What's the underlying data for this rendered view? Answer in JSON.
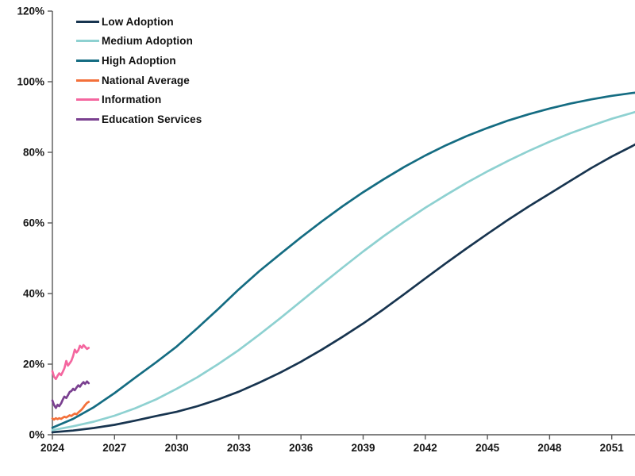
{
  "chart_data": {
    "type": "line",
    "title": "",
    "xlabel": "",
    "ylabel": "",
    "grid": false,
    "legend_position": "top-left",
    "xlim": [
      2024,
      2052.3
    ],
    "ylim": [
      0,
      120
    ],
    "axis_color": "#595959",
    "tick_text_color": "#161616",
    "y_ticks": [
      {
        "value": 0,
        "label": "0%"
      },
      {
        "value": 20,
        "label": "20%"
      },
      {
        "value": 40,
        "label": "40%"
      },
      {
        "value": 60,
        "label": "60%"
      },
      {
        "value": 80,
        "label": "80%"
      },
      {
        "value": 100,
        "label": "100%"
      },
      {
        "value": 120,
        "label": "120%"
      }
    ],
    "x_ticks": [
      {
        "value": 2024,
        "label": "2024"
      },
      {
        "value": 2027,
        "label": "2027"
      },
      {
        "value": 2030,
        "label": "2030"
      },
      {
        "value": 2033,
        "label": "2033"
      },
      {
        "value": 2036,
        "label": "2036"
      },
      {
        "value": 2039,
        "label": "2039"
      },
      {
        "value": 2042,
        "label": "2042"
      },
      {
        "value": 2045,
        "label": "2045"
      },
      {
        "value": 2048,
        "label": "2048"
      },
      {
        "value": 2051,
        "label": "2051"
      }
    ],
    "series": [
      {
        "name": "Low Adoption",
        "color": "#17344f",
        "x": [
          2024,
          2025,
          2026,
          2027,
          2028,
          2029,
          2030,
          2031,
          2032,
          2033,
          2034,
          2035,
          2036,
          2037,
          2038,
          2039,
          2040,
          2041,
          2042,
          2043,
          2044,
          2045,
          2046,
          2047,
          2048,
          2049,
          2050,
          2051,
          2052,
          2052.3
        ],
        "y": [
          0.7,
          1.2,
          1.9,
          2.8,
          4.0,
          5.3,
          6.5,
          8.1,
          10.0,
          12.2,
          14.8,
          17.6,
          20.7,
          24.1,
          27.7,
          31.5,
          35.6,
          39.9,
          44.3,
          48.6,
          52.8,
          56.9,
          60.9,
          64.7,
          68.3,
          71.9,
          75.5,
          78.8,
          81.8,
          82.8
        ]
      },
      {
        "name": "Medium Adoption",
        "color": "#8ed1d1",
        "x": [
          2024,
          2025,
          2026,
          2027,
          2028,
          2029,
          2030,
          2031,
          2032,
          2033,
          2034,
          2035,
          2036,
          2037,
          2038,
          2039,
          2040,
          2041,
          2042,
          2043,
          2044,
          2045,
          2046,
          2047,
          2048,
          2049,
          2050,
          2051,
          2052,
          2052.3
        ],
        "y": [
          1.3,
          2.4,
          3.7,
          5.4,
          7.5,
          10.0,
          13.0,
          16.3,
          20.0,
          24.0,
          28.4,
          33.0,
          37.8,
          42.6,
          47.3,
          51.9,
          56.3,
          60.4,
          64.3,
          67.9,
          71.4,
          74.6,
          77.6,
          80.4,
          83.0,
          85.4,
          87.5,
          89.5,
          91.2,
          91.7
        ]
      },
      {
        "name": "High Adoption",
        "color": "#146c82",
        "x": [
          2024,
          2025,
          2026,
          2027,
          2028,
          2029,
          2030,
          2031,
          2032,
          2033,
          2034,
          2035,
          2036,
          2037,
          2038,
          2039,
          2040,
          2041,
          2042,
          2043,
          2044,
          2045,
          2046,
          2047,
          2048,
          2049,
          2050,
          2051,
          2052,
          2052.3
        ],
        "y": [
          2.0,
          4.5,
          7.8,
          11.8,
          16.2,
          20.5,
          25.0,
          30.2,
          35.6,
          41.2,
          46.4,
          51.2,
          55.9,
          60.4,
          64.7,
          68.7,
          72.4,
          75.9,
          79.1,
          82.0,
          84.6,
          86.9,
          89.0,
          90.8,
          92.4,
          93.8,
          95.0,
          96.0,
          96.8,
          97.0
        ]
      },
      {
        "name": "National Average",
        "color": "#f3703a",
        "x": [
          2024.0,
          2024.08,
          2024.17,
          2024.25,
          2024.33,
          2024.42,
          2024.5,
          2024.58,
          2024.67,
          2024.75,
          2024.83,
          2024.92,
          2025.0,
          2025.08,
          2025.17,
          2025.25,
          2025.33,
          2025.42,
          2025.5,
          2025.58,
          2025.67,
          2025.75
        ],
        "y": [
          4.6,
          4.3,
          4.7,
          4.4,
          4.7,
          4.5,
          4.8,
          5.1,
          4.9,
          5.2,
          5.5,
          5.3,
          5.7,
          6.0,
          5.8,
          6.3,
          6.7,
          7.2,
          7.8,
          8.4,
          9.0,
          9.3
        ]
      },
      {
        "name": "Information",
        "color": "#f4669f",
        "x": [
          2024.0,
          2024.08,
          2024.17,
          2024.25,
          2024.33,
          2024.42,
          2024.5,
          2024.58,
          2024.67,
          2024.75,
          2024.83,
          2024.92,
          2025.0,
          2025.08,
          2025.17,
          2025.25,
          2025.33,
          2025.42,
          2025.5,
          2025.58,
          2025.67,
          2025.75
        ],
        "y": [
          18.0,
          16.4,
          15.8,
          16.7,
          17.4,
          16.9,
          17.8,
          18.8,
          20.9,
          19.6,
          20.2,
          21.0,
          22.3,
          24.1,
          23.3,
          23.9,
          25.2,
          24.6,
          25.4,
          24.9,
          24.3,
          24.6
        ]
      },
      {
        "name": "Education Services",
        "color": "#7a4090",
        "x": [
          2024.0,
          2024.08,
          2024.17,
          2024.25,
          2024.33,
          2024.42,
          2024.5,
          2024.58,
          2024.67,
          2024.75,
          2024.83,
          2024.92,
          2025.0,
          2025.08,
          2025.17,
          2025.25,
          2025.33,
          2025.42,
          2025.5,
          2025.58,
          2025.67,
          2025.75
        ],
        "y": [
          9.7,
          8.4,
          7.6,
          8.5,
          8.1,
          8.9,
          9.9,
          10.8,
          10.4,
          11.2,
          12.1,
          12.4,
          13.0,
          12.6,
          13.4,
          14.0,
          13.6,
          14.4,
          14.9,
          14.4,
          15.1,
          14.6
        ]
      }
    ]
  }
}
